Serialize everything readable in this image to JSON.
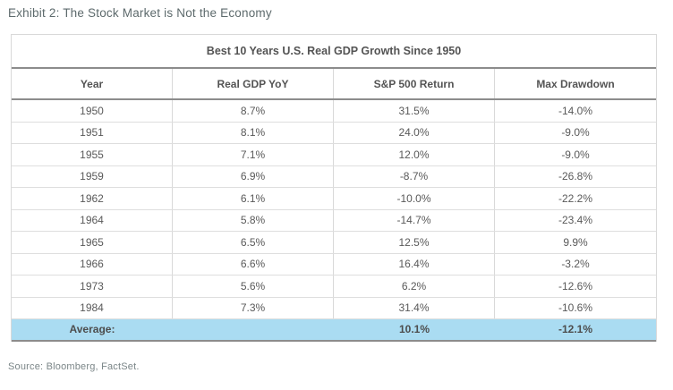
{
  "exhibit_title": "Exhibit 2: The Stock Market is Not the Economy",
  "table": {
    "title": "Best 10 Years U.S. Real GDP Growth Since 1950",
    "columns": [
      "Year",
      "Real GDP YoY",
      "S&P 500 Return",
      "Max Drawdown"
    ],
    "rows": [
      [
        "1950",
        "8.7%",
        "31.5%",
        "-14.0%"
      ],
      [
        "1951",
        "8.1%",
        "24.0%",
        "-9.0%"
      ],
      [
        "1955",
        "7.1%",
        "12.0%",
        "-9.0%"
      ],
      [
        "1959",
        "6.9%",
        "-8.7%",
        "-26.8%"
      ],
      [
        "1962",
        "6.1%",
        "-10.0%",
        "-22.2%"
      ],
      [
        "1964",
        "5.8%",
        "-14.7%",
        "-23.4%"
      ],
      [
        "1965",
        "6.5%",
        "12.5%",
        "9.9%"
      ],
      [
        "1966",
        "6.6%",
        "16.4%",
        "-3.2%"
      ],
      [
        "1973",
        "5.6%",
        "6.2%",
        "-12.6%"
      ],
      [
        "1984",
        "7.3%",
        "31.4%",
        "-10.6%"
      ]
    ],
    "average": [
      "Average:",
      "",
      "10.1%",
      "-12.1%"
    ]
  },
  "source": "Source: Bloomberg, FactSet.",
  "colors": {
    "average_row_bg": "#aadcf2",
    "border_strong": "#8c8c8c",
    "border_light": "#d9d9d9",
    "text": "#595959",
    "exhibit_title_text": "#5d6a6c",
    "source_text": "#7b8688"
  },
  "chart_data": {
    "type": "table",
    "title": "Best 10 Years U.S. Real GDP Growth Since 1950",
    "columns": [
      "Year",
      "Real GDP YoY",
      "S&P 500 Return",
      "Max Drawdown"
    ],
    "rows": [
      {
        "year": 1950,
        "real_gdp_yoy_pct": 8.7,
        "sp500_return_pct": 31.5,
        "max_drawdown_pct": -14.0
      },
      {
        "year": 1951,
        "real_gdp_yoy_pct": 8.1,
        "sp500_return_pct": 24.0,
        "max_drawdown_pct": -9.0
      },
      {
        "year": 1955,
        "real_gdp_yoy_pct": 7.1,
        "sp500_return_pct": 12.0,
        "max_drawdown_pct": -9.0
      },
      {
        "year": 1959,
        "real_gdp_yoy_pct": 6.9,
        "sp500_return_pct": -8.7,
        "max_drawdown_pct": -26.8
      },
      {
        "year": 1962,
        "real_gdp_yoy_pct": 6.1,
        "sp500_return_pct": -10.0,
        "max_drawdown_pct": -22.2
      },
      {
        "year": 1964,
        "real_gdp_yoy_pct": 5.8,
        "sp500_return_pct": -14.7,
        "max_drawdown_pct": -23.4
      },
      {
        "year": 1965,
        "real_gdp_yoy_pct": 6.5,
        "sp500_return_pct": 12.5,
        "max_drawdown_pct": 9.9
      },
      {
        "year": 1966,
        "real_gdp_yoy_pct": 6.6,
        "sp500_return_pct": 16.4,
        "max_drawdown_pct": -3.2
      },
      {
        "year": 1973,
        "real_gdp_yoy_pct": 5.6,
        "sp500_return_pct": 6.2,
        "max_drawdown_pct": -12.6
      },
      {
        "year": 1984,
        "real_gdp_yoy_pct": 7.3,
        "sp500_return_pct": 31.4,
        "max_drawdown_pct": -10.6
      }
    ],
    "average": {
      "sp500_return_pct": 10.1,
      "max_drawdown_pct": -12.1
    }
  }
}
